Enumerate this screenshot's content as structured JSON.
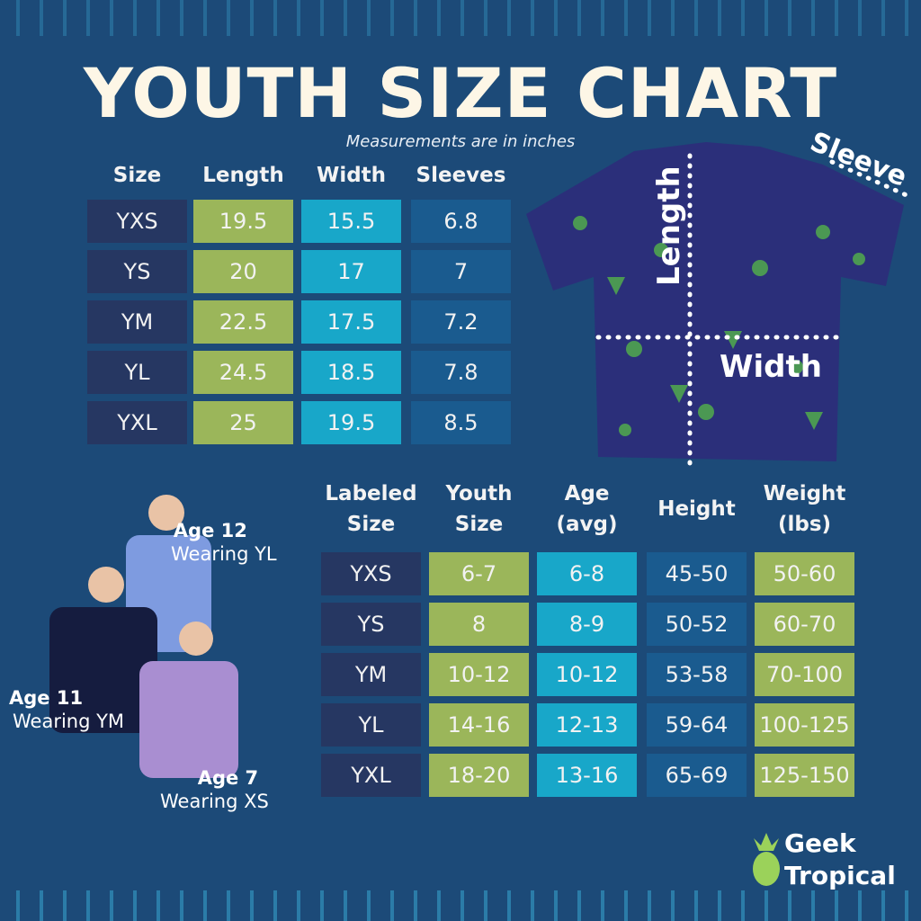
{
  "title": "YOUTH SIZE CHART",
  "subtitle": "Measurements are in inches",
  "table1": {
    "headers": [
      "Size",
      "Length",
      "Width",
      "Sleeves"
    ],
    "rows": [
      [
        "YXS",
        "19.5",
        "15.5",
        "6.8"
      ],
      [
        "YS",
        "20",
        "17",
        "7"
      ],
      [
        "YM",
        "22.5",
        "17.5",
        "7.2"
      ],
      [
        "YL",
        "24.5",
        "18.5",
        "7.8"
      ],
      [
        "YXL",
        "25",
        "19.5",
        "8.5"
      ]
    ]
  },
  "shirt_labels": {
    "length": "Length",
    "width": "Width",
    "sleeve": "Sleeve"
  },
  "table2": {
    "headers": [
      [
        "Labeled",
        "Size"
      ],
      [
        "Youth",
        "Size"
      ],
      [
        "Age",
        "(avg)"
      ],
      [
        "Height",
        ""
      ],
      [
        "Weight",
        "(lbs)"
      ]
    ],
    "rows": [
      [
        "YXS",
        "6-7",
        "6-8",
        "45-50",
        "50-60"
      ],
      [
        "YS",
        "8",
        "8-9",
        "50-52",
        "60-70"
      ],
      [
        "YM",
        "10-12",
        "10-12",
        "53-58",
        "70-100"
      ],
      [
        "YL",
        "14-16",
        "12-13",
        "59-64",
        "100-125"
      ],
      [
        "YXL",
        "18-20",
        "13-16",
        "65-69",
        "125-150"
      ]
    ]
  },
  "models": [
    {
      "age": "Age 12",
      "wearing": "Wearing YL"
    },
    {
      "age": "Age 11",
      "wearing": "Wearing YM"
    },
    {
      "age": "Age 7",
      "wearing": "Wearing XS"
    }
  ],
  "logo": {
    "line1": "Geek",
    "line2": "Tropical"
  },
  "colors": {
    "background": "#1c4a78",
    "size_cell": "#263762",
    "green": "#9bb65a",
    "cyan": "#18a7c9",
    "blue": "#1a5b8f"
  }
}
